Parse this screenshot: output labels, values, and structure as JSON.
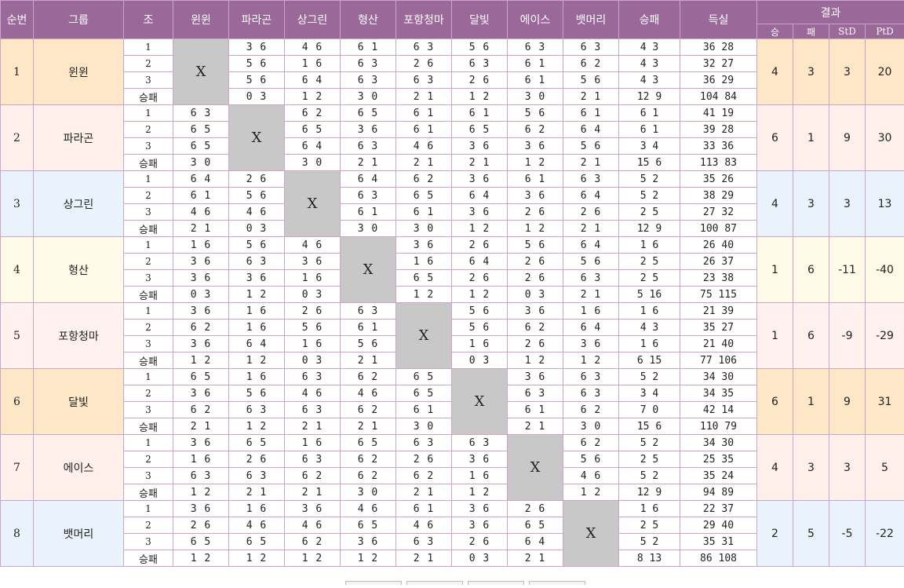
{
  "headers": {
    "rank": "순번",
    "group": "그룹",
    "round": "조",
    "teams": [
      "윈윈",
      "파라곤",
      "상그린",
      "형산",
      "포항청마",
      "달빛",
      "에이스",
      "뱃머리"
    ],
    "winloss": "승패",
    "score": "득실",
    "result": "결과",
    "result_cols": [
      "승",
      "패",
      "StD",
      "PtD"
    ]
  },
  "x_mark": "X",
  "groups": [
    {
      "rank": "1",
      "name": "윈윈",
      "rows": [
        {
          "label": "1",
          "cells": [
            "",
            "3 6",
            "4 6",
            "6 1",
            "6 3",
            "5 6",
            "6 3",
            "6 3"
          ],
          "wl": "4 3",
          "score": "36 28"
        },
        {
          "label": "2",
          "cells": [
            "",
            "5 6",
            "1 6",
            "6 3",
            "2 6",
            "6 3",
            "6 1",
            "6 2"
          ],
          "wl": "4 3",
          "score": "32 27"
        },
        {
          "label": "3",
          "cells": [
            "",
            "5 6",
            "6 4",
            "6 3",
            "6 3",
            "2 6",
            "6 1",
            "5 6"
          ],
          "wl": "4 3",
          "score": "36 29"
        },
        {
          "label": "승패",
          "cells": [
            "",
            "0 3",
            "1 2",
            "3 0",
            "2 1",
            "1 2",
            "3 0",
            "2 1"
          ],
          "wl": "12 9",
          "score": "104 84"
        }
      ],
      "result": {
        "w": "4",
        "l": "3",
        "std": "3",
        "ptd": "20"
      }
    },
    {
      "rank": "2",
      "name": "파라곤",
      "rows": [
        {
          "label": "1",
          "cells": [
            "6 3",
            "",
            "6 2",
            "6 5",
            "6 1",
            "6 1",
            "5 6",
            "6 1"
          ],
          "wl": "6 1",
          "score": "41 19"
        },
        {
          "label": "2",
          "cells": [
            "6 5",
            "",
            "6 5",
            "3 6",
            "6 1",
            "6 5",
            "6 2",
            "6 4"
          ],
          "wl": "6 1",
          "score": "39 28"
        },
        {
          "label": "3",
          "cells": [
            "6 5",
            "",
            "6 4",
            "6 3",
            "4 6",
            "3 6",
            "3 6",
            "5 6"
          ],
          "wl": "3 4",
          "score": "33 36"
        },
        {
          "label": "승패",
          "cells": [
            "3 0",
            "",
            "3 0",
            "2 1",
            "2 1",
            "2 1",
            "1 2",
            "2 1"
          ],
          "wl": "15 6",
          "score": "113 83"
        }
      ],
      "result": {
        "w": "6",
        "l": "1",
        "std": "9",
        "ptd": "30"
      }
    },
    {
      "rank": "3",
      "name": "상그린",
      "rows": [
        {
          "label": "1",
          "cells": [
            "6 4",
            "2 6",
            "",
            "6 4",
            "6 2",
            "3 6",
            "6 1",
            "6 3"
          ],
          "wl": "5 2",
          "score": "35 26"
        },
        {
          "label": "2",
          "cells": [
            "6 1",
            "5 6",
            "",
            "6 3",
            "6 5",
            "6 4",
            "3 6",
            "6 4"
          ],
          "wl": "5 2",
          "score": "38 29"
        },
        {
          "label": "3",
          "cells": [
            "4 6",
            "4 6",
            "",
            "6 1",
            "6 1",
            "3 6",
            "2 6",
            "2 6"
          ],
          "wl": "2 5",
          "score": "27 32"
        },
        {
          "label": "승패",
          "cells": [
            "2 1",
            "0 3",
            "",
            "3 0",
            "3 0",
            "1 2",
            "1 2",
            "2 1"
          ],
          "wl": "12 9",
          "score": "100 87"
        }
      ],
      "result": {
        "w": "4",
        "l": "3",
        "std": "3",
        "ptd": "13"
      }
    },
    {
      "rank": "4",
      "name": "형산",
      "rows": [
        {
          "label": "1",
          "cells": [
            "1 6",
            "5 6",
            "4 6",
            "",
            "3 6",
            "2 6",
            "5 6",
            "6 4"
          ],
          "wl": "1 6",
          "score": "26 40"
        },
        {
          "label": "2",
          "cells": [
            "3 6",
            "6 3",
            "3 6",
            "",
            "1 6",
            "6 4",
            "2 6",
            "5 6"
          ],
          "wl": "2 5",
          "score": "26 37"
        },
        {
          "label": "3",
          "cells": [
            "3 6",
            "3 6",
            "1 6",
            "",
            "6 5",
            "2 6",
            "2 6",
            "6 3"
          ],
          "wl": "2 5",
          "score": "23 38"
        },
        {
          "label": "승패",
          "cells": [
            "0 3",
            "1 2",
            "0 3",
            "",
            "1 2",
            "1 2",
            "0 3",
            "2 1"
          ],
          "wl": "5 16",
          "score": "75 115"
        }
      ],
      "result": {
        "w": "1",
        "l": "6",
        "std": "-11",
        "ptd": "-40"
      }
    },
    {
      "rank": "5",
      "name": "포항청마",
      "rows": [
        {
          "label": "1",
          "cells": [
            "3 6",
            "1 6",
            "2 6",
            "6 3",
            "",
            "5 6",
            "3 6",
            "1 6"
          ],
          "wl": "1 6",
          "score": "21 39"
        },
        {
          "label": "2",
          "cells": [
            "6 2",
            "1 6",
            "5 6",
            "6 1",
            "",
            "5 6",
            "6 2",
            "6 4"
          ],
          "wl": "4 3",
          "score": "35 27"
        },
        {
          "label": "3",
          "cells": [
            "3 6",
            "6 4",
            "1 6",
            "5 6",
            "",
            "1 6",
            "2 6",
            "3 6"
          ],
          "wl": "1 6",
          "score": "21 40"
        },
        {
          "label": "승패",
          "cells": [
            "1 2",
            "1 2",
            "0 3",
            "2 1",
            "",
            "0 3",
            "1 2",
            "1 2"
          ],
          "wl": "6 15",
          "score": "77 106"
        }
      ],
      "result": {
        "w": "1",
        "l": "6",
        "std": "-9",
        "ptd": "-29"
      }
    },
    {
      "rank": "6",
      "name": "달빛",
      "rows": [
        {
          "label": "1",
          "cells": [
            "6 5",
            "1 6",
            "6 3",
            "6 2",
            "6 5",
            "",
            "3 6",
            "6 3"
          ],
          "wl": "5 2",
          "score": "34 30"
        },
        {
          "label": "2",
          "cells": [
            "3 6",
            "5 6",
            "4 6",
            "4 6",
            "6 5",
            "",
            "6 3",
            "6 3"
          ],
          "wl": "3 4",
          "score": "34 35"
        },
        {
          "label": "3",
          "cells": [
            "6 2",
            "6 3",
            "6 3",
            "6 2",
            "6 1",
            "",
            "6 1",
            "6 2"
          ],
          "wl": "7 0",
          "score": "42 14"
        },
        {
          "label": "승패",
          "cells": [
            "2 1",
            "1 2",
            "2 1",
            "2 1",
            "3 0",
            "",
            "2 1",
            "3 0"
          ],
          "wl": "15 6",
          "score": "110 79"
        }
      ],
      "result": {
        "w": "6",
        "l": "1",
        "std": "9",
        "ptd": "31"
      }
    },
    {
      "rank": "7",
      "name": "에이스",
      "rows": [
        {
          "label": "1",
          "cells": [
            "3 6",
            "6 5",
            "1 6",
            "6 5",
            "6 3",
            "6 3",
            "",
            "6 2"
          ],
          "wl": "5 2",
          "score": "34 30"
        },
        {
          "label": "2",
          "cells": [
            "1 6",
            "2 6",
            "6 3",
            "6 2",
            "2 6",
            "3 6",
            "",
            "5 6"
          ],
          "wl": "2 5",
          "score": "25 35"
        },
        {
          "label": "3",
          "cells": [
            "6 3",
            "6 3",
            "6 2",
            "6 2",
            "6 2",
            "1 6",
            "",
            "4 6"
          ],
          "wl": "5 2",
          "score": "35 24"
        },
        {
          "label": "승패",
          "cells": [
            "1 2",
            "2 1",
            "2 1",
            "3 0",
            "2 1",
            "1 2",
            "",
            "1 2"
          ],
          "wl": "12 9",
          "score": "94 89"
        }
      ],
      "result": {
        "w": "4",
        "l": "3",
        "std": "3",
        "ptd": "5"
      }
    },
    {
      "rank": "8",
      "name": "뱃머리",
      "rows": [
        {
          "label": "1",
          "cells": [
            "3 6",
            "1 6",
            "3 6",
            "4 6",
            "6 1",
            "3 6",
            "2 6",
            ""
          ],
          "wl": "1 6",
          "score": "22 37"
        },
        {
          "label": "2",
          "cells": [
            "2 6",
            "4 6",
            "4 6",
            "6 5",
            "4 6",
            "3 6",
            "6 5",
            ""
          ],
          "wl": "2 5",
          "score": "29 40"
        },
        {
          "label": "3",
          "cells": [
            "6 5",
            "6 5",
            "6 2",
            "3 6",
            "6 3",
            "2 6",
            "6 4",
            ""
          ],
          "wl": "5 2",
          "score": "35 31"
        },
        {
          "label": "승패",
          "cells": [
            "1 2",
            "1 2",
            "1 2",
            "1 2",
            "2 1",
            "0 3",
            "2 1",
            ""
          ],
          "wl": "8 13",
          "score": "86 108"
        }
      ],
      "result": {
        "w": "2",
        "l": "5",
        "std": "-5",
        "ptd": "-22"
      }
    }
  ]
}
